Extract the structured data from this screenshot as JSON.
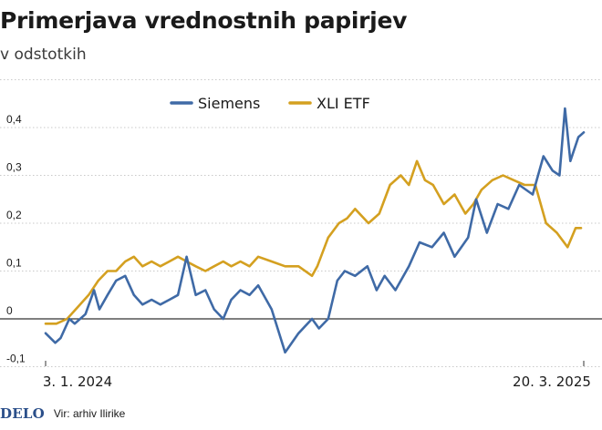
{
  "title": "Primerjava vrednostnih papirjev",
  "subtitle": "v odstotkih",
  "logo": "DELO",
  "source": "Vir: arhiv Ilirike",
  "colors": {
    "siemens": "#3f6aa6",
    "xli": "#d4a020",
    "grid": "#c9c9c9",
    "zero": "#333333"
  },
  "chart_data": {
    "type": "line",
    "title": "Primerjava vrednostnih papirjev",
    "subtitle": "v odstotkih",
    "x_ticks": [
      {
        "label": "3. 1. 2024",
        "value": 0
      },
      {
        "label": "20. 3. 2025",
        "value": 1
      }
    ],
    "y_ticks": [
      {
        "label": "-0,1",
        "value": -0.1
      },
      {
        "label": "0",
        "value": 0
      },
      {
        "label": "0,1",
        "value": 0.1
      },
      {
        "label": "0,2",
        "value": 0.2
      },
      {
        "label": "0,3",
        "value": 0.3
      },
      {
        "label": "0,4",
        "value": 0.4
      }
    ],
    "ylim": [
      -0.1,
      0.45
    ],
    "grid": true,
    "legend": "top-center",
    "series": [
      {
        "name": "Siemens",
        "x": [
          0.0,
          0.018,
          0.028,
          0.044,
          0.054,
          0.074,
          0.09,
          0.1,
          0.115,
          0.131,
          0.148,
          0.164,
          0.18,
          0.197,
          0.213,
          0.23,
          0.246,
          0.262,
          0.279,
          0.297,
          0.313,
          0.33,
          0.345,
          0.362,
          0.379,
          0.395,
          0.42,
          0.445,
          0.47,
          0.495,
          0.508,
          0.525,
          0.542,
          0.556,
          0.575,
          0.598,
          0.615,
          0.63,
          0.65,
          0.675,
          0.695,
          0.718,
          0.74,
          0.76,
          0.785,
          0.8,
          0.82,
          0.84,
          0.86,
          0.88,
          0.905,
          0.925,
          0.942,
          0.955,
          0.965,
          0.975,
          0.99,
          1.0
        ],
        "y": [
          -0.03,
          -0.05,
          -0.04,
          0.0,
          -0.01,
          0.01,
          0.06,
          0.02,
          0.05,
          0.08,
          0.09,
          0.05,
          0.03,
          0.04,
          0.03,
          0.04,
          0.05,
          0.13,
          0.05,
          0.06,
          0.02,
          0.0,
          0.04,
          0.06,
          0.05,
          0.07,
          0.02,
          -0.07,
          -0.03,
          0.0,
          -0.02,
          0.0,
          0.08,
          0.1,
          0.09,
          0.11,
          0.06,
          0.09,
          0.06,
          0.11,
          0.16,
          0.15,
          0.18,
          0.13,
          0.17,
          0.25,
          0.18,
          0.24,
          0.23,
          0.28,
          0.26,
          0.34,
          0.31,
          0.3,
          0.44,
          0.33,
          0.38,
          0.39
        ]
      },
      {
        "name": "XLI ETF",
        "x": [
          0.0,
          0.02,
          0.04,
          0.064,
          0.08,
          0.098,
          0.115,
          0.131,
          0.148,
          0.164,
          0.18,
          0.197,
          0.213,
          0.23,
          0.246,
          0.262,
          0.279,
          0.297,
          0.313,
          0.33,
          0.345,
          0.362,
          0.379,
          0.395,
          0.42,
          0.445,
          0.47,
          0.495,
          0.505,
          0.525,
          0.545,
          0.56,
          0.575,
          0.6,
          0.62,
          0.64,
          0.66,
          0.675,
          0.69,
          0.705,
          0.72,
          0.74,
          0.76,
          0.78,
          0.795,
          0.81,
          0.83,
          0.85,
          0.87,
          0.89,
          0.91,
          0.93,
          0.95,
          0.97,
          0.985,
          0.995
        ],
        "y": [
          -0.01,
          -0.01,
          0.0,
          0.03,
          0.05,
          0.08,
          0.1,
          0.1,
          0.12,
          0.13,
          0.11,
          0.12,
          0.11,
          0.12,
          0.13,
          0.12,
          0.11,
          0.1,
          0.11,
          0.12,
          0.11,
          0.12,
          0.11,
          0.13,
          0.12,
          0.11,
          0.11,
          0.09,
          0.11,
          0.17,
          0.2,
          0.21,
          0.23,
          0.2,
          0.22,
          0.28,
          0.3,
          0.28,
          0.33,
          0.29,
          0.28,
          0.24,
          0.26,
          0.22,
          0.24,
          0.27,
          0.29,
          0.3,
          0.29,
          0.28,
          0.28,
          0.2,
          0.18,
          0.15,
          0.19,
          0.19
        ]
      }
    ]
  }
}
